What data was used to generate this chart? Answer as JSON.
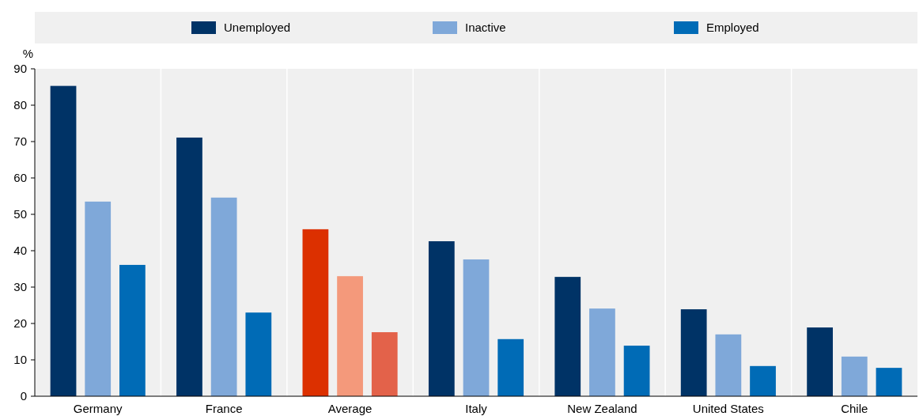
{
  "chart_data": {
    "type": "bar",
    "ylabel": "%",
    "categories": [
      "Germany",
      "France",
      "Average",
      "Italy",
      "New Zealand",
      "United States",
      "Chile"
    ],
    "series": [
      {
        "name": "Unemployed",
        "color": "#003366",
        "colors": [
          "#003366",
          "#003366",
          "#dc3000",
          "#003366",
          "#003366",
          "#003366",
          "#003366"
        ],
        "values": [
          85.3,
          71.1,
          45.9,
          42.6,
          32.8,
          23.9,
          18.9
        ]
      },
      {
        "name": "Inactive",
        "color": "#7fa8d9",
        "colors": [
          "#7fa8d9",
          "#7fa8d9",
          "#f4997b",
          "#7fa8d9",
          "#7fa8d9",
          "#7fa8d9",
          "#7fa8d9"
        ],
        "values": [
          53.5,
          54.6,
          33.0,
          37.6,
          24.1,
          17.0,
          10.9
        ]
      },
      {
        "name": "Employed",
        "color": "#006bb6",
        "colors": [
          "#006bb6",
          "#006bb6",
          "#e3624a",
          "#006bb6",
          "#006bb6",
          "#006bb6",
          "#006bb6"
        ],
        "values": [
          36.1,
          23.0,
          17.6,
          15.7,
          13.9,
          8.3,
          7.8
        ]
      }
    ],
    "ylim": [
      0,
      90
    ],
    "yticks": [
      0,
      10,
      20,
      30,
      40,
      50,
      60,
      70,
      80,
      90
    ],
    "grid": "x",
    "legend": "top"
  }
}
